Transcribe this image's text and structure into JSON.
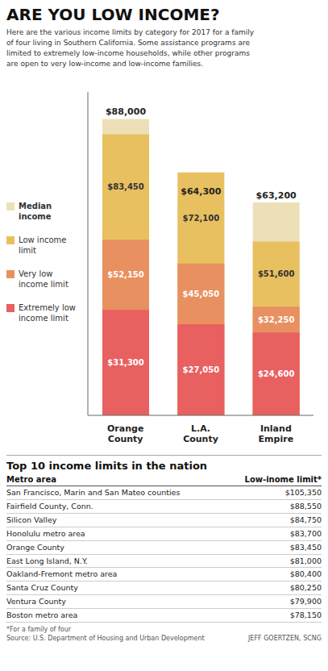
{
  "chart_data": [
    {
      "type": "bar",
      "title": "ARE YOU LOW INCOME?",
      "subtitle": "Here are the various income limits by category for 2017 for a family\nof four living in Southern California. Some assistance programs are\nlimited to extremely low-income households, while other programs\nare open to very low-income and low-income families.",
      "categories": [
        "Orange\nCounty",
        "L.A.\nCounty",
        "Inland\nEmpire"
      ],
      "series": [
        {
          "name": "Median\nincome",
          "color": "#EDE0B8",
          "values": [
            88000,
            64300,
            63200
          ],
          "value_labels": [
            "$88,000",
            "$64,300",
            "$63,200"
          ]
        },
        {
          "name": "Low income\nlimit",
          "color": "#E8C060",
          "values": [
            83450,
            72100,
            51600
          ],
          "value_labels": [
            "$83,450",
            "$72,100",
            "$51,600"
          ]
        },
        {
          "name": "Very low\nincome limit",
          "color": "#E89060",
          "values": [
            52150,
            45050,
            32250
          ],
          "value_labels": [
            "$52,150",
            "$45,050",
            "$32,250"
          ]
        },
        {
          "name": "Extremely low\nincome limit",
          "color": "#E86060",
          "values": [
            31300,
            27050,
            24600
          ],
          "value_labels": [
            "$31,300",
            "$27,050",
            "$24,600"
          ]
        }
      ],
      "ylim": [
        0,
        96000
      ],
      "stacked": false,
      "data_labels": true,
      "tick_labels": "x",
      "grid": false,
      "legend": "left"
    },
    {
      "type": "table",
      "title": "Top 10 income limits in the nation",
      "columns": [
        "Metro area",
        "Low-inome limit*"
      ],
      "rows": [
        [
          "San Francisco, Marin and San Mateo counties",
          "$105,350"
        ],
        [
          "Fairfield County, Conn.",
          "$88,550"
        ],
        [
          "Silicon Valley",
          "$84,750"
        ],
        [
          "Honolulu metro area",
          "$83,700"
        ],
        [
          "Orange County",
          "$83,450"
        ],
        [
          "East Long Island, N.Y.",
          "$81,000"
        ],
        [
          "Oakland-Fremont metro area",
          "$80,400"
        ],
        [
          "Santa Cruz County",
          "$80,250"
        ],
        [
          "Ventura County",
          "$79,900"
        ],
        [
          "Boston metro area",
          "$78,150"
        ]
      ],
      "footnote": "*For a family of four",
      "source": "Source: U.S. Department of Housing and Urban Development",
      "credit": "JEFF GOERTZEN, SCNG"
    }
  ]
}
